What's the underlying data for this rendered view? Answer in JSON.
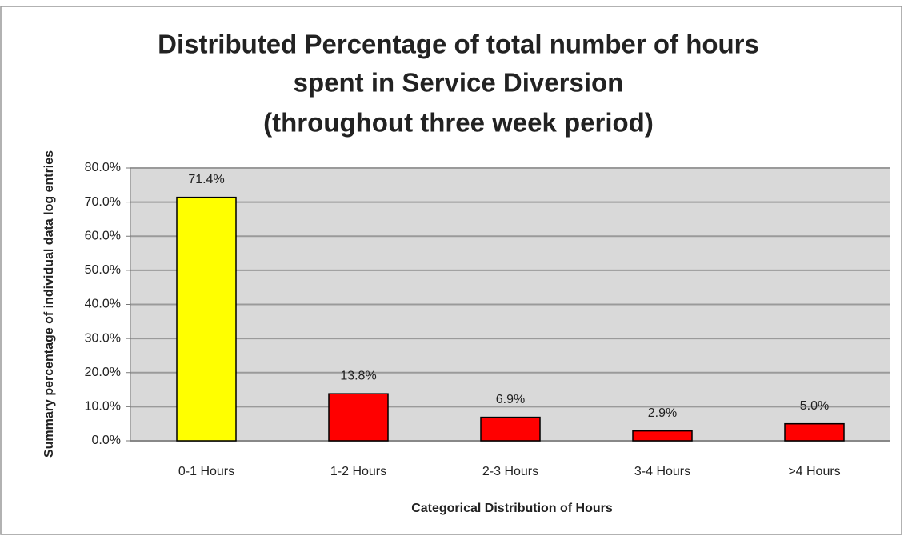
{
  "chart_data": {
    "type": "bar",
    "title": [
      "Distributed Percentage of total number of hours",
      "spent in Service Diversion",
      "(throughout three week period)"
    ],
    "x_label": "Categorical Distribution of Hours",
    "y_label": "Summary percentage of individual data log entries",
    "categories": [
      "0-1 Hours",
      "1-2 Hours",
      "2-3 Hours",
      "3-4 Hours",
      ">4 Hours"
    ],
    "values": [
      71.4,
      13.8,
      6.9,
      2.9,
      5.0
    ],
    "value_labels": [
      "71.4%",
      "13.8%",
      "6.9%",
      "2.9%",
      "5.0%"
    ],
    "colors": [
      "#ffff00",
      "#ff0000",
      "#ff0000",
      "#ff0000",
      "#ff0000"
    ],
    "ylim": [
      0,
      80
    ],
    "yticks": [
      {
        "value": 0,
        "label": "0.0%"
      },
      {
        "value": 10,
        "label": "10.0%"
      },
      {
        "value": 20,
        "label": "20.0%"
      },
      {
        "value": 30,
        "label": "30.0%"
      },
      {
        "value": 40,
        "label": "40.0%"
      },
      {
        "value": 50,
        "label": "50.0%"
      },
      {
        "value": 60,
        "label": "60.0%"
      },
      {
        "value": 70,
        "label": "70.0%"
      },
      {
        "value": 80,
        "label": "80.0%"
      }
    ],
    "grid": true
  }
}
